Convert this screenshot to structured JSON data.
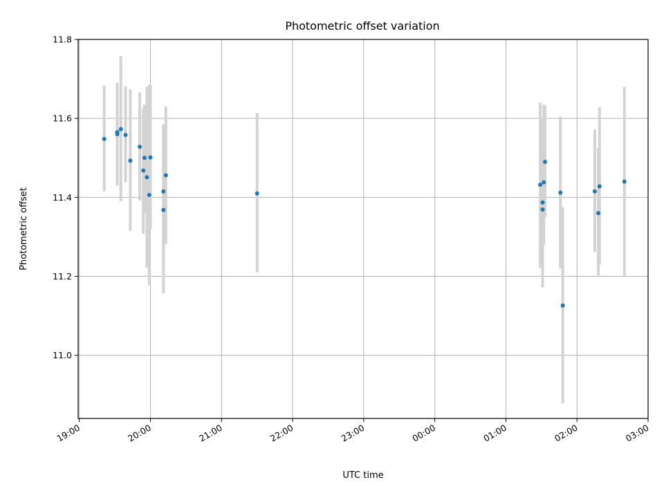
{
  "chart_data": {
    "type": "scatter",
    "title": "Photometric offset variation",
    "xlabel": "UTC time",
    "ylabel": "Photometric offset",
    "x_axis_type": "time",
    "xlim": [
      "18:59",
      "03:00"
    ],
    "ylim": [
      10.84,
      11.8
    ],
    "x_ticks": [
      "19:00",
      "20:00",
      "21:00",
      "22:00",
      "23:00",
      "00:00",
      "01:00",
      "02:00",
      "03:00"
    ],
    "y_ticks": [
      11.0,
      11.2,
      11.4,
      11.6,
      11.8
    ],
    "grid": true,
    "point_color": "#1f77b4",
    "errorbar_color": "#d3d3d3",
    "points": [
      {
        "x": "19:21",
        "y": 11.548,
        "lo": 11.415,
        "hi": 11.683
      },
      {
        "x": "19:32",
        "y": 11.565,
        "lo": 11.432,
        "hi": 11.69
      },
      {
        "x": "19:32",
        "y": 11.56,
        "lo": 11.43,
        "hi": 11.69
      },
      {
        "x": "19:35",
        "y": 11.573,
        "lo": 11.39,
        "hi": 11.758
      },
      {
        "x": "19:39",
        "y": 11.558,
        "lo": 11.438,
        "hi": 11.681
      },
      {
        "x": "19:43",
        "y": 11.493,
        "lo": 11.315,
        "hi": 11.673
      },
      {
        "x": "19:51",
        "y": 11.528,
        "lo": 11.392,
        "hi": 11.666
      },
      {
        "x": "19:54",
        "y": 11.468,
        "lo": 11.308,
        "hi": 11.625
      },
      {
        "x": "19:55",
        "y": 11.5,
        "lo": 11.36,
        "hi": 11.635
      },
      {
        "x": "19:57",
        "y": 11.451,
        "lo": 11.222,
        "hi": 11.68
      },
      {
        "x": "19:59",
        "y": 11.406,
        "lo": 11.177,
        "hi": 11.685
      },
      {
        "x": "20:00",
        "y": 11.501,
        "lo": 11.32,
        "hi": 11.685
      },
      {
        "x": "20:11",
        "y": 11.415,
        "lo": 11.24,
        "hi": 11.585
      },
      {
        "x": "20:11",
        "y": 11.368,
        "lo": 11.157,
        "hi": 11.58
      },
      {
        "x": "20:13",
        "y": 11.456,
        "lo": 11.282,
        "hi": 11.63
      },
      {
        "x": "21:30",
        "y": 11.41,
        "lo": 11.21,
        "hi": 11.613
      },
      {
        "x": "01:29",
        "y": 11.432,
        "lo": 11.222,
        "hi": 11.64
      },
      {
        "x": "01:31",
        "y": 11.387,
        "lo": 11.172,
        "hi": 11.598
      },
      {
        "x": "01:31",
        "y": 11.369,
        "lo": 11.25,
        "hi": 11.49
      },
      {
        "x": "01:32",
        "y": 11.438,
        "lo": 11.28,
        "hi": 11.635
      },
      {
        "x": "01:33",
        "y": 11.49,
        "lo": 11.35,
        "hi": 11.633
      },
      {
        "x": "01:46",
        "y": 11.412,
        "lo": 11.22,
        "hi": 11.605
      },
      {
        "x": "01:48",
        "y": 11.126,
        "lo": 10.878,
        "hi": 11.375
      },
      {
        "x": "02:15",
        "y": 11.415,
        "lo": 11.262,
        "hi": 11.572
      },
      {
        "x": "02:18",
        "y": 11.36,
        "lo": 11.198,
        "hi": 11.525
      },
      {
        "x": "02:19",
        "y": 11.428,
        "lo": 11.23,
        "hi": 11.628
      },
      {
        "x": "02:40",
        "y": 11.44,
        "lo": 11.2,
        "hi": 11.68
      }
    ]
  }
}
